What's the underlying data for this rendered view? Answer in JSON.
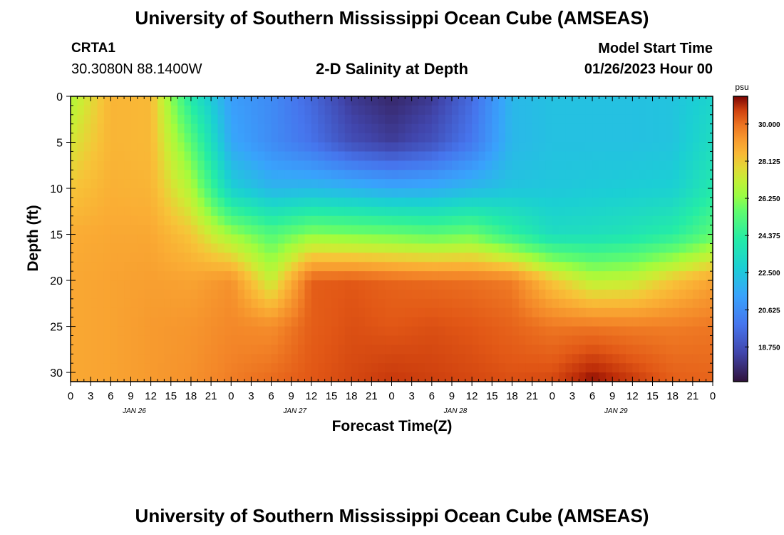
{
  "header": {
    "title": "University of Southern Mississippi Ocean Cube (AMSEAS)",
    "station_id": "CRTA1",
    "station_coords": "30.3080N  88.1400W",
    "plot_title": "2-D Salinity at Depth",
    "model_label": "Model Start Time",
    "model_time": "01/26/2023 Hour 00"
  },
  "footer": {
    "title": "University of Southern Mississippi Ocean Cube (AMSEAS)"
  },
  "chart_data": {
    "type": "heatmap",
    "title": "2-D Salinity at Depth",
    "xlabel": "Forecast Time(Z)",
    "ylabel": "Depth (ft)",
    "x_ticks": [
      "0",
      "3",
      "6",
      "9",
      "12",
      "15",
      "18",
      "21",
      "0",
      "3",
      "6",
      "9",
      "12",
      "15",
      "18",
      "21",
      "0",
      "3",
      "6",
      "9",
      "12",
      "15",
      "18",
      "21",
      "0",
      "3",
      "6",
      "9",
      "12",
      "15",
      "18",
      "21",
      "0"
    ],
    "x_date_labels": [
      {
        "label": "JAN 26",
        "hour": 9
      },
      {
        "label": "JAN 27",
        "hour": 33
      },
      {
        "label": "JAN 28",
        "hour": 57
      },
      {
        "label": "JAN 29",
        "hour": 81
      }
    ],
    "xlim": [
      0,
      96
    ],
    "y_ticks": [
      0,
      5,
      10,
      15,
      20,
      25,
      30
    ],
    "ylim": [
      0,
      31
    ],
    "colorbar": {
      "unit": "psu",
      "ticks": [
        "30.000",
        "28.125",
        "26.250",
        "24.375",
        "22.500",
        "20.625",
        "18.750"
      ],
      "range": [
        17.0,
        31.4
      ]
    },
    "grid_hours": [
      0,
      6,
      12,
      18,
      24,
      30,
      36,
      42,
      48,
      54,
      60,
      66,
      72,
      78,
      84,
      90,
      96
    ],
    "grid_depths": [
      0,
      5,
      10,
      15,
      20,
      25,
      31
    ],
    "grid_values": [
      [
        26.8,
        28.6,
        28.5,
        24.0,
        21.2,
        20.6,
        19.5,
        18.1,
        17.6,
        18.1,
        19.6,
        22.0,
        22.3,
        22.3,
        22.3,
        22.4,
        23.0
      ],
      [
        27.5,
        28.6,
        28.5,
        25.5,
        21.5,
        20.6,
        19.8,
        18.7,
        18.2,
        18.8,
        20.0,
        22.0,
        22.3,
        22.3,
        22.3,
        22.4,
        23.4
      ],
      [
        28.2,
        28.7,
        28.6,
        26.8,
        22.8,
        21.9,
        22.0,
        21.8,
        21.5,
        21.6,
        22.0,
        22.4,
        22.5,
        22.6,
        22.7,
        22.8,
        24.0
      ],
      [
        28.8,
        28.9,
        28.9,
        28.2,
        26.5,
        25.3,
        26.2,
        26.0,
        25.8,
        25.5,
        25.8,
        24.5,
        23.4,
        23.5,
        23.8,
        24.3,
        25.5
      ],
      [
        28.9,
        29.0,
        29.1,
        29.0,
        29.4,
        27.2,
        30.3,
        30.4,
        30.2,
        30.1,
        30.0,
        29.8,
        28.2,
        27.0,
        27.2,
        28.2,
        29.0
      ],
      [
        28.9,
        29.0,
        29.2,
        29.3,
        29.6,
        29.5,
        30.3,
        30.5,
        30.4,
        30.5,
        30.4,
        30.2,
        29.9,
        29.9,
        29.8,
        29.8,
        29.9
      ],
      [
        28.9,
        29.0,
        29.2,
        29.4,
        29.8,
        30.1,
        30.4,
        30.6,
        30.8,
        30.7,
        30.6,
        30.5,
        30.6,
        31.3,
        30.8,
        30.3,
        30.2
      ]
    ]
  }
}
